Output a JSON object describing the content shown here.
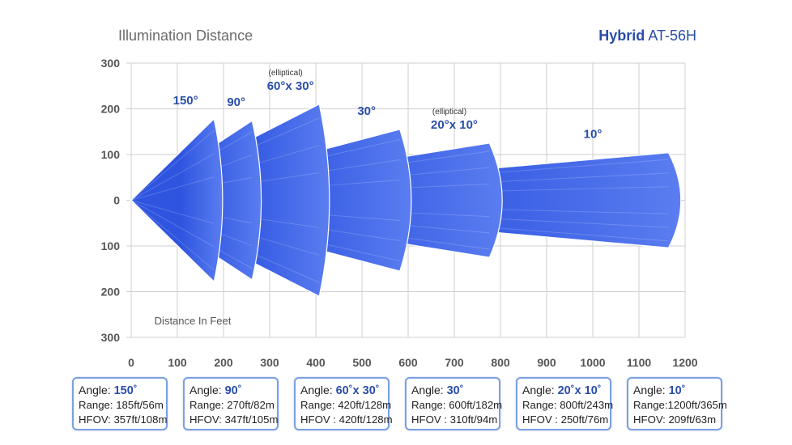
{
  "title": "Illumination Distance",
  "brand": {
    "name": "Hybrid",
    "model": "AT-56H"
  },
  "colors": {
    "beam": "#2f55e0",
    "beam_light": "#5a7df0",
    "accent": "#2a4ea8",
    "grid": "#cfcfcf",
    "axis_text": "#555555"
  },
  "chart_data": {
    "type": "area",
    "title": "Illumination Distance",
    "xlabel": "Distance In Feet",
    "x_ticks": [
      0,
      100,
      200,
      300,
      400,
      500,
      600,
      700,
      800,
      900,
      1000,
      1100,
      1200
    ],
    "y_ticks": [
      300,
      200,
      100,
      0,
      100,
      200,
      300
    ],
    "xlim": [
      0,
      1200
    ],
    "ylim": [
      -300,
      300
    ],
    "beams": [
      {
        "angle": "150°",
        "range_ft": 185,
        "half_width_ft": 178,
        "note": ""
      },
      {
        "angle": "90°",
        "range_ft": 270,
        "half_width_ft": 174,
        "note": ""
      },
      {
        "angle": "60°x 30°",
        "range_ft": 420,
        "half_width_ft": 210,
        "note": "(elliptical)"
      },
      {
        "angle": "30°",
        "range_ft": 600,
        "half_width_ft": 155,
        "note": ""
      },
      {
        "angle": "20°x 10°",
        "range_ft": 800,
        "half_width_ft": 125,
        "note": "(elliptical)"
      },
      {
        "angle": "10°",
        "range_ft": 1200,
        "half_width_ft": 104,
        "note": ""
      }
    ]
  },
  "cards": [
    {
      "angle_label": "Angle:",
      "angle": "150˚",
      "range": "Range: 185ft/56m",
      "hfov": "HFOV: 357ft/108m"
    },
    {
      "angle_label": "Angle:",
      "angle": "90˚",
      "range": "Range: 270ft/82m",
      "hfov": "HFOV: 347ft/105m"
    },
    {
      "angle_label": "Angle:",
      "angle": "60˚x 30˚",
      "range": "Range: 420ft/128m",
      "hfov": "HFOV : 420ft/128m"
    },
    {
      "angle_label": "Angle:",
      "angle": "30˚",
      "range": "Range: 600ft/182m",
      "hfov": "HFOV : 310ft/94m"
    },
    {
      "angle_label": "Angle:",
      "angle": "20˚x 10˚",
      "range": "Range: 800ft/243m",
      "hfov": "HFOV : 250ft/76m"
    },
    {
      "angle_label": "Angle:",
      "angle": "10˚",
      "range": "Range:1200ft/365m",
      "hfov": "HFOV: 209ft/63m"
    }
  ]
}
